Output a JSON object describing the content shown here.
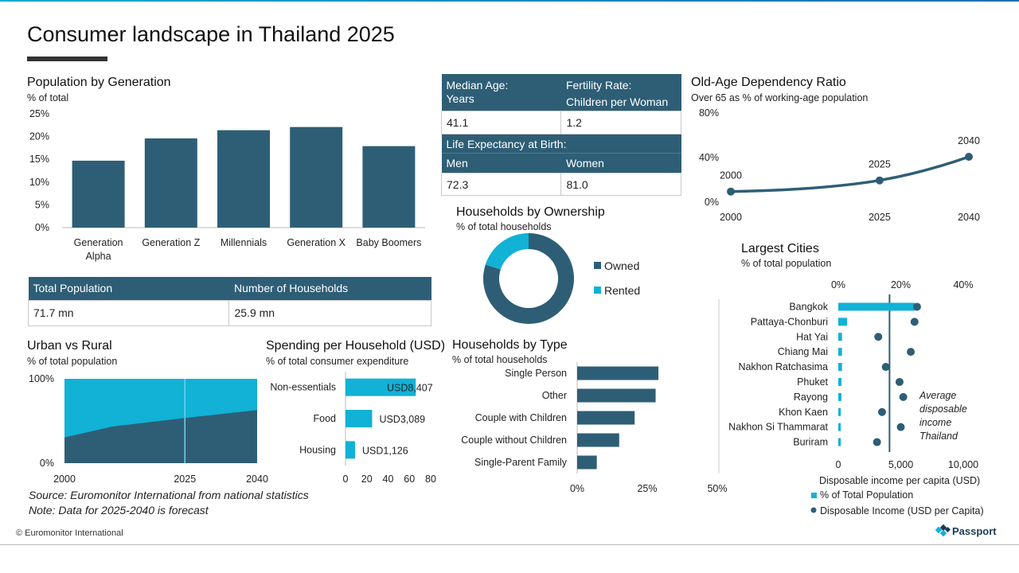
{
  "page": {
    "title": "Consumer landscape in Thailand 2025",
    "source_line1": "Source: Euromonitor International from national statistics",
    "source_line2": "Note: Data for 2025-2040 is forecast",
    "copyright": "© Euromonitor International",
    "logo": "Passport",
    "logo_icon": "passport-logo-icon"
  },
  "colors": {
    "dark": "#2e5e76",
    "light": "#12b1d6",
    "grid": "#d9d9d9"
  },
  "population_generation": {
    "title": "Population by Generation",
    "subtitle": "% of total",
    "chart_data": {
      "type": "bar",
      "categories": [
        "Generation\nAlpha",
        "Generation Z",
        "Millennials",
        "Generation X",
        "Baby Boomers"
      ],
      "values": [
        14.7,
        19.6,
        21.4,
        22.1,
        17.9
      ],
      "y_ticks": [
        "0%",
        "5%",
        "10%",
        "15%",
        "20%",
        "25%"
      ],
      "ylim": [
        0,
        25
      ],
      "unit": "%"
    }
  },
  "stats": {
    "median_age_label1": "Median Age:",
    "median_age_label2": "Years",
    "fertility_label1": "Fertility Rate:",
    "fertility_label2": "Children per Woman",
    "median_age": "41.1",
    "fertility": "1.2",
    "life_expectancy_label": "Life Expectancy at Birth:",
    "men_label": "Men",
    "women_label": "Women",
    "men": "72.3",
    "women": "81.0",
    "total_population_label": "Total Population",
    "households_label": "Number of Households",
    "total_population": "71.7 mn",
    "households": "25.9 mn"
  },
  "old_age": {
    "title": "Old-Age Dependency Ratio",
    "subtitle": "Over 65 as % of working-age population",
    "chart_data": {
      "type": "line",
      "x": [
        2000,
        2025,
        2040
      ],
      "values": [
        9.5,
        19.5,
        40.7
      ],
      "point_labels": [
        "2000",
        "2025",
        "2040"
      ],
      "x_ticks": [
        "2000",
        "2025",
        "2040"
      ],
      "y_ticks": [
        "0%",
        "40%",
        "80%"
      ],
      "ylim": [
        0,
        80
      ]
    }
  },
  "ownership": {
    "title": "Households by Ownership",
    "subtitle": "% of total households",
    "chart_data": {
      "type": "pie",
      "categories": [
        "Owned",
        "Rented"
      ],
      "values": [
        80,
        20
      ]
    }
  },
  "urban_rural": {
    "title": "Urban vs Rural",
    "subtitle": "% of total population",
    "chart_data": {
      "type": "area",
      "x": [
        2000,
        2010,
        2025,
        2040
      ],
      "series": [
        {
          "values": [
            30.5,
            43.5,
            53.5,
            63
          ]
        },
        {
          "values": [
            69.5,
            56.5,
            46.5,
            37
          ]
        }
      ],
      "x_ticks": [
        "2000",
        "2025",
        "2040"
      ],
      "y_ticks": [
        "0%",
        "100%"
      ],
      "ylim": [
        0,
        100
      ],
      "marker_x": 2025
    }
  },
  "spending": {
    "title": "Spending per Household (USD)",
    "subtitle": "% of total consumer expenditure",
    "chart_data": {
      "type": "bar",
      "orientation": "horizontal",
      "categories": [
        "Non-essentials",
        "Food",
        "Housing"
      ],
      "values": [
        66,
        25,
        9
      ],
      "value_labels": [
        "USD8,407",
        "USD3,089",
        "USD1,126"
      ],
      "x_ticks": [
        "0",
        "20",
        "40",
        "60",
        "80"
      ],
      "xlim": [
        0,
        80
      ]
    }
  },
  "household_type": {
    "title": "Households by Type",
    "subtitle": "% of total households",
    "chart_data": {
      "type": "bar",
      "orientation": "horizontal",
      "categories": [
        "Single Person",
        "Other",
        "Couple with Children",
        "Couple without Children",
        "Single-Parent Family"
      ],
      "values": [
        29,
        28,
        20.5,
        15,
        7
      ],
      "x_ticks": [
        "0%",
        "25%",
        "50%"
      ],
      "xlim": [
        0,
        50
      ]
    }
  },
  "cities": {
    "title": "Largest Cities",
    "subtitle": "% of total population",
    "chart_data": {
      "type": "bar",
      "orientation": "horizontal",
      "categories": [
        "Bangkok",
        "Pattaya-Chonburi",
        "Hat Yai",
        "Chiang Mai",
        "Nakhon Ratchasima",
        "Phuket",
        "Rayong",
        "Khon Kaen",
        "Nakhon Si Thammarat",
        "Buriram"
      ],
      "series": [
        {
          "name": "% of Total Population",
          "values": [
            24.5,
            2.8,
            1.2,
            1.2,
            1.2,
            1.0,
            1.0,
            0.8,
            0.8,
            0.8
          ]
        },
        {
          "name": "Disposable Income (USD per Capita)",
          "values": [
            6300,
            6100,
            3200,
            5800,
            3800,
            4900,
            5200,
            3500,
            5000,
            3100
          ]
        }
      ],
      "top_ticks": [
        "0%",
        "20%",
        "40%"
      ],
      "top_lim": [
        0,
        40
      ],
      "bottom_ticks": [
        "0",
        "5,000",
        "10,000"
      ],
      "bottom_lim": [
        0,
        10000
      ],
      "bottom_label": "Disposable income per capita (USD)",
      "average_income": 4100,
      "average_label": [
        "Average",
        "disposable",
        "income",
        "Thailand"
      ]
    }
  }
}
